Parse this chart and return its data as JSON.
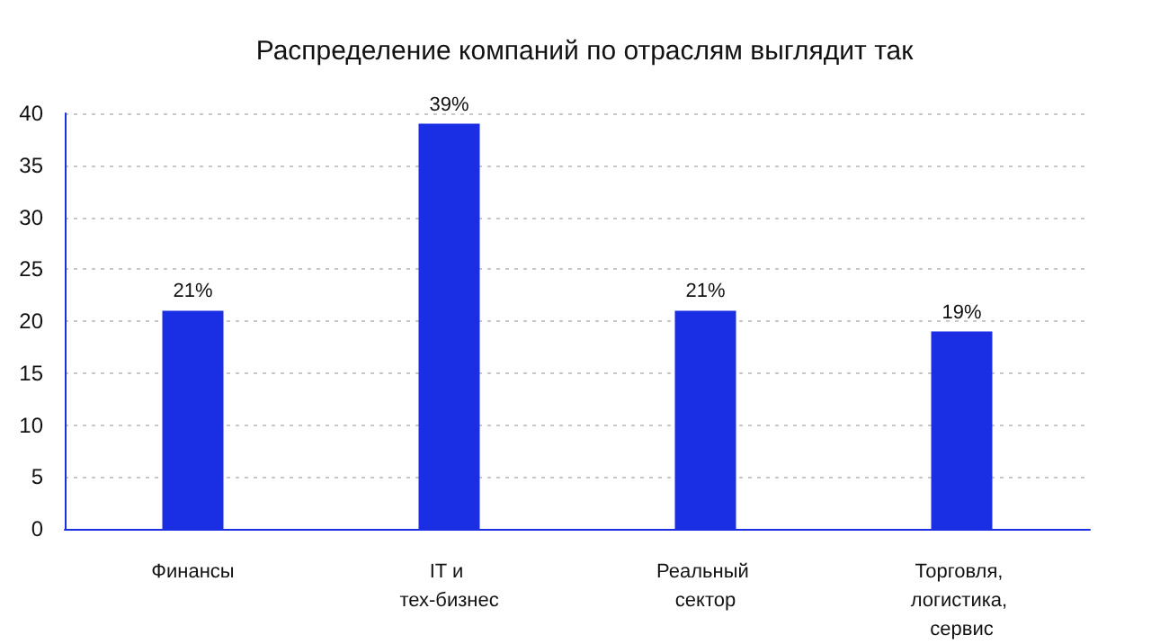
{
  "chart_data": {
    "type": "bar",
    "title": "Распределение компаний по отраслям выглядит так",
    "categories": [
      "Финансы",
      "IT и тех-бизнес",
      "Реальный сектор",
      "Торговля, логистика, сервис"
    ],
    "values": [
      21,
      39,
      21,
      19
    ],
    "value_labels": [
      "21%",
      "39%",
      "21%",
      "19%"
    ],
    "color": "#1a2ee3",
    "ylim": [
      0,
      40
    ],
    "yticks": [
      0,
      5,
      10,
      15,
      20,
      25,
      30,
      35,
      40
    ],
    "grid": "y"
  }
}
